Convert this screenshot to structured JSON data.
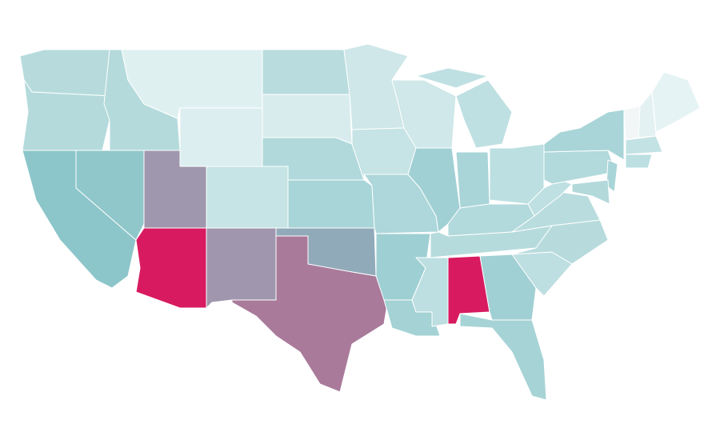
{
  "regions": [
    {
      "color": "#b7dbdd"
    },
    {
      "color": "#b4dadc"
    },
    {
      "color": "#8cc6ca"
    },
    {
      "color": "#8fc7cb"
    },
    {
      "color": "#b4dadc"
    },
    {
      "color": "#dff0f1"
    },
    {
      "color": "#dceeef"
    },
    {
      "color": "#9f97ad"
    },
    {
      "color": "#c6e4e5"
    },
    {
      "color": "#d81b60"
    },
    {
      "color": "#a097ae"
    },
    {
      "color": "#b9dcde"
    },
    {
      "color": "#d8ecee"
    },
    {
      "color": "#b1d9db"
    },
    {
      "color": "#a8d5d7"
    },
    {
      "color": "#91aab9"
    },
    {
      "color": "#a97a9a"
    },
    {
      "color": "#cfe7e9"
    },
    {
      "color": "#c6e3e5"
    },
    {
      "color": "#add7da"
    },
    {
      "color": "#9ecfd3"
    },
    {
      "color": "#a4d2d5"
    },
    {
      "color": "#d0e8e9"
    },
    {
      "color": "#a1d0d4"
    },
    {
      "color": "#bfe0e2"
    },
    {
      "color": "#a9d5d8"
    },
    {
      "color": "#bcdfe1"
    },
    {
      "color": "#b2d9db"
    },
    {
      "color": "#b6dbdd"
    },
    {
      "color": "#bddfe1"
    },
    {
      "color": "#d81b60"
    },
    {
      "color": "#a1d0d4"
    },
    {
      "color": "#a6d3d6"
    },
    {
      "color": "#bedfe1"
    },
    {
      "color": "#b7dbdd"
    },
    {
      "color": "#b9dcde"
    },
    {
      "color": "#bfe0e2"
    },
    {
      "color": "#b2d9db"
    },
    {
      "color": "#a9d5d8"
    },
    {
      "color": "#f2f6f7"
    },
    {
      "color": "#e3f1f2"
    },
    {
      "color": "#e6f3f4"
    },
    {
      "color": "#c3e2e4"
    },
    {
      "color": "#bcdfe1"
    },
    {
      "color": "#a8d5d8"
    },
    {
      "color": "#b3d9db"
    }
  ]
}
